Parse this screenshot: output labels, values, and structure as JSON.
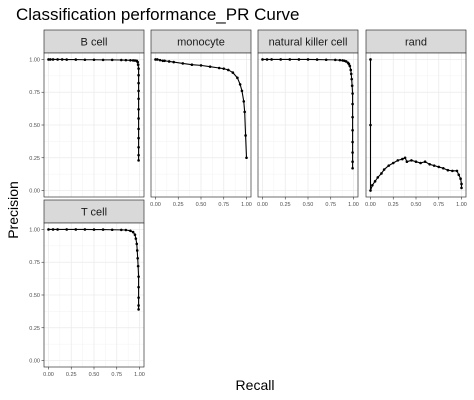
{
  "chart_data": {
    "type": "line",
    "title": "Classification performance_PR Curve",
    "xlabel": "Recall",
    "ylabel": "Precision",
    "xlim": [
      0,
      1
    ],
    "ylim": [
      0,
      1
    ],
    "x_ticks": [
      "0.00",
      "0.25",
      "0.50",
      "0.75",
      "1.00"
    ],
    "y_ticks": [
      "0.00",
      "0.25",
      "0.50",
      "0.75",
      "1.00"
    ],
    "grid": true,
    "facet_columns": 4,
    "panels": [
      {
        "label": "B cell",
        "x": [
          0.0,
          0.02,
          0.05,
          0.1,
          0.15,
          0.2,
          0.3,
          0.4,
          0.5,
          0.6,
          0.7,
          0.8,
          0.85,
          0.9,
          0.93,
          0.95,
          0.97,
          0.98,
          0.985,
          0.99,
          0.99,
          0.99,
          0.99,
          0.99,
          0.99,
          0.99,
          0.99,
          0.99,
          0.99,
          0.99,
          0.99
        ],
        "y": [
          1.0,
          1.0,
          1.0,
          1.0,
          1.0,
          0.999,
          0.999,
          0.998,
          0.998,
          0.997,
          0.997,
          0.996,
          0.995,
          0.994,
          0.993,
          0.992,
          0.99,
          0.98,
          0.96,
          0.93,
          0.88,
          0.82,
          0.76,
          0.7,
          0.62,
          0.55,
          0.47,
          0.4,
          0.33,
          0.27,
          0.23
        ]
      },
      {
        "label": "monocyte",
        "x": [
          0.0,
          0.02,
          0.05,
          0.08,
          0.1,
          0.15,
          0.2,
          0.3,
          0.4,
          0.5,
          0.6,
          0.7,
          0.75,
          0.8,
          0.85,
          0.9,
          0.93,
          0.95,
          0.97,
          0.98,
          0.99,
          1.0
        ],
        "y": [
          1.0,
          1.0,
          0.995,
          0.99,
          0.99,
          0.985,
          0.98,
          0.97,
          0.96,
          0.955,
          0.945,
          0.935,
          0.93,
          0.92,
          0.9,
          0.86,
          0.81,
          0.76,
          0.68,
          0.6,
          0.42,
          0.25
        ]
      },
      {
        "label": "natural killer cell",
        "x": [
          0.0,
          0.05,
          0.1,
          0.2,
          0.3,
          0.4,
          0.5,
          0.6,
          0.7,
          0.8,
          0.85,
          0.88,
          0.9,
          0.92,
          0.94,
          0.95,
          0.96,
          0.97,
          0.975,
          0.98,
          0.985,
          0.99,
          0.99,
          0.99,
          0.99,
          0.99,
          0.99,
          0.99,
          0.99
        ],
        "y": [
          1.0,
          1.0,
          1.0,
          1.0,
          1.0,
          1.0,
          1.0,
          0.999,
          0.998,
          0.997,
          0.995,
          0.993,
          0.99,
          0.985,
          0.975,
          0.965,
          0.95,
          0.92,
          0.89,
          0.85,
          0.8,
          0.74,
          0.66,
          0.56,
          0.46,
          0.37,
          0.29,
          0.22,
          0.17
        ]
      },
      {
        "label": "rand",
        "x": [
          0.0,
          0.0,
          0.0,
          0.02,
          0.05,
          0.08,
          0.12,
          0.15,
          0.2,
          0.25,
          0.3,
          0.35,
          0.38,
          0.4,
          0.45,
          0.5,
          0.55,
          0.6,
          0.65,
          0.7,
          0.75,
          0.8,
          0.85,
          0.9,
          0.95,
          0.97,
          0.99,
          1.0,
          1.0
        ],
        "y": [
          1.0,
          0.5,
          0.0,
          0.04,
          0.07,
          0.1,
          0.13,
          0.16,
          0.19,
          0.21,
          0.23,
          0.24,
          0.25,
          0.22,
          0.23,
          0.22,
          0.21,
          0.22,
          0.2,
          0.19,
          0.18,
          0.17,
          0.155,
          0.15,
          0.15,
          0.12,
          0.09,
          0.05,
          0.02
        ]
      },
      {
        "label": "T cell",
        "x": [
          0.0,
          0.05,
          0.1,
          0.2,
          0.3,
          0.4,
          0.5,
          0.6,
          0.7,
          0.8,
          0.85,
          0.9,
          0.93,
          0.95,
          0.96,
          0.97,
          0.975,
          0.98,
          0.985,
          0.99,
          0.99,
          0.99,
          0.99,
          0.99
        ],
        "y": [
          1.0,
          1.0,
          1.0,
          1.0,
          1.0,
          1.0,
          0.999,
          0.999,
          0.998,
          0.997,
          0.996,
          0.99,
          0.98,
          0.96,
          0.93,
          0.89,
          0.84,
          0.78,
          0.72,
          0.64,
          0.56,
          0.48,
          0.42,
          0.39
        ]
      }
    ]
  }
}
